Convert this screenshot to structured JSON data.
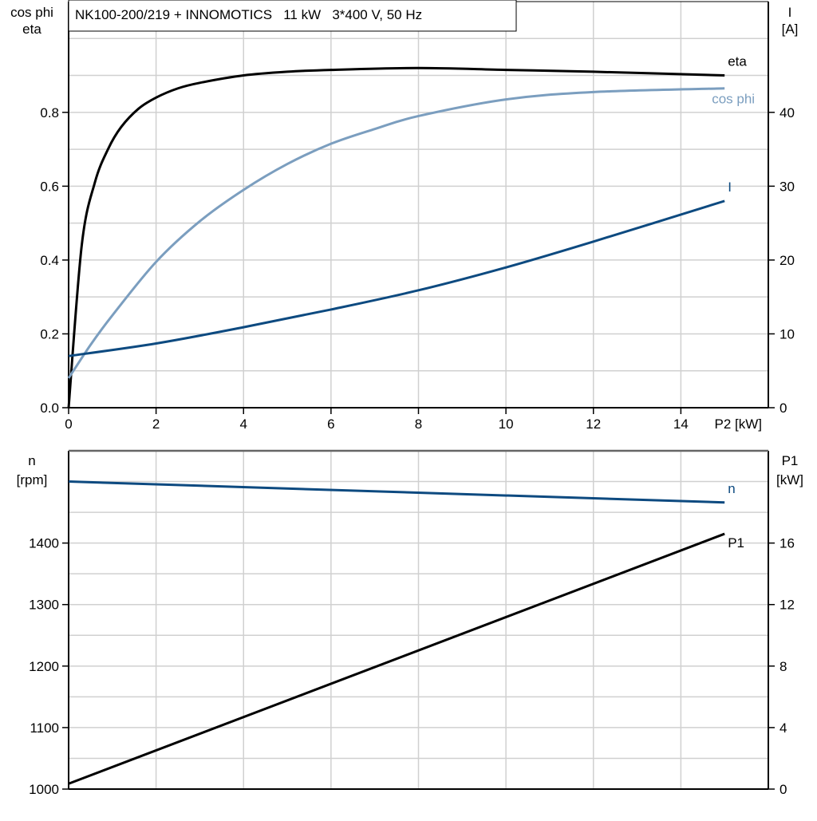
{
  "chart_data": [
    {
      "type": "line",
      "title": "NK100-200/219 + INNOMOTICS   11 kW   3*400 V, 50 Hz",
      "xlabel": "P2 [kW]",
      "ylabel_left": [
        "cos phi",
        "eta"
      ],
      "ylabel_right": [
        "I",
        "[A]"
      ],
      "xlim": [
        0,
        16
      ],
      "ylim_left": [
        0,
        1.1
      ],
      "ylim_right": [
        0,
        55
      ],
      "xticks": [
        "0",
        "2",
        "4",
        "6",
        "8",
        "10",
        "12",
        "14"
      ],
      "yticks_left": [
        "0.0",
        "0.2",
        "0.4",
        "0.6",
        "0.8"
      ],
      "yticks_right": [
        "0",
        "10",
        "20",
        "30",
        "40"
      ],
      "grid": true,
      "series": [
        {
          "name": "eta",
          "axis": "left",
          "color": "#000000",
          "x": [
            0,
            0.3,
            0.6,
            0.9,
            1.2,
            1.6,
            2,
            2.5,
            3,
            4,
            5,
            6,
            8,
            10,
            12,
            15
          ],
          "y": [
            0,
            0.44,
            0.61,
            0.7,
            0.76,
            0.81,
            0.84,
            0.865,
            0.88,
            0.9,
            0.91,
            0.915,
            0.92,
            0.915,
            0.91,
            0.9
          ]
        },
        {
          "name": "cos phi",
          "axis": "left",
          "color": "#7b9ebf",
          "x": [
            0,
            0.5,
            1,
            2,
            3,
            4,
            5,
            6,
            7,
            8,
            10,
            12,
            15
          ],
          "y": [
            0.08,
            0.17,
            0.25,
            0.395,
            0.505,
            0.59,
            0.66,
            0.715,
            0.755,
            0.79,
            0.835,
            0.855,
            0.865
          ]
        },
        {
          "name": "I",
          "axis": "right",
          "color": "#0d4a80",
          "x": [
            0,
            2,
            4,
            6,
            8,
            10,
            12,
            15
          ],
          "y": [
            7.0,
            8.7,
            10.9,
            13.3,
            15.9,
            19.0,
            22.5,
            28.0
          ]
        }
      ]
    },
    {
      "type": "line",
      "xlim": [
        0,
        16
      ],
      "ylabel_left": [
        "n",
        "[rpm]"
      ],
      "ylabel_right": [
        "P1",
        "[kW]"
      ],
      "ylim_left": [
        1000,
        1550
      ],
      "ylim_right": [
        0,
        22
      ],
      "yticks_left": [
        "1000",
        "1100",
        "1200",
        "1300",
        "1400"
      ],
      "yticks_right": [
        "0",
        "4",
        "8",
        "12",
        "16"
      ],
      "grid": true,
      "series": [
        {
          "name": "n",
          "axis": "left",
          "color": "#0d4a80",
          "x": [
            0,
            15
          ],
          "y": [
            1500,
            1466
          ]
        },
        {
          "name": "P1",
          "axis": "right",
          "color": "#000000",
          "x": [
            0,
            15
          ],
          "y": [
            0.35,
            16.6
          ]
        }
      ]
    }
  ]
}
